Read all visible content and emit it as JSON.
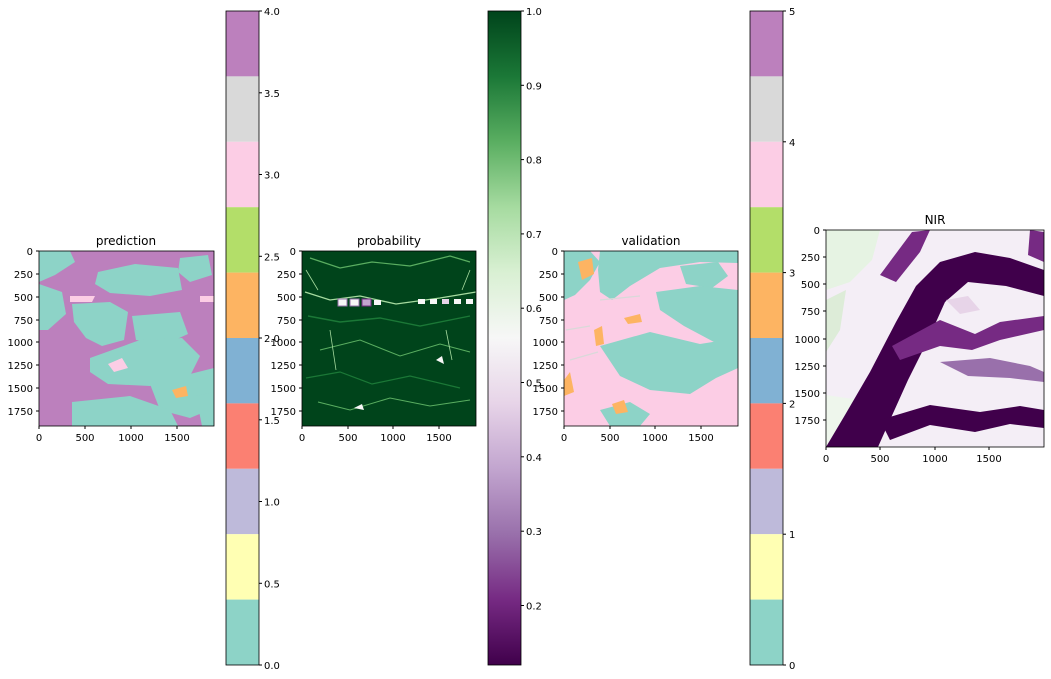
{
  "colors": {
    "set3": [
      "#8dd3c7",
      "#ffffb3",
      "#bebada",
      "#fb8072",
      "#80b1d3",
      "#fdb462",
      "#b3de69",
      "#fccde5",
      "#d9d9d9",
      "#bc80bd"
    ],
    "prgn": [
      "#40004b",
      "#762a83",
      "#9970ab",
      "#c2a5cf",
      "#e7d4e8",
      "#f7f7f7",
      "#d9f0d3",
      "#a6dba0",
      "#5aae61",
      "#1b7837",
      "#00441b"
    ],
    "axis": "#000000"
  },
  "chart_data": [
    {
      "type": "heatmap",
      "title": "prediction",
      "xticks": [
        "0",
        "500",
        "1000",
        "1500"
      ],
      "yticks": [
        "0",
        "250",
        "500",
        "750",
        "1000",
        "1250",
        "1500",
        "1750"
      ],
      "xlim": [
        0,
        1900
      ],
      "ylim": [
        1900,
        0
      ],
      "colormap": "Set3",
      "colorbar": {
        "range": [
          0,
          4
        ],
        "ticks": [
          "0.0",
          "0.5",
          "1.0",
          "1.5",
          "2.0",
          "2.5",
          "3.0",
          "3.5",
          "4.0"
        ],
        "segments": 10
      }
    },
    {
      "type": "heatmap",
      "title": "probability",
      "xticks": [
        "0",
        "500",
        "1000",
        "1500"
      ],
      "yticks": [
        "0",
        "250",
        "500",
        "750",
        "1000",
        "1250",
        "1500",
        "1750"
      ],
      "xlim": [
        0,
        1900
      ],
      "ylim": [
        1900,
        0
      ],
      "colormap": "PRGn",
      "colorbar": {
        "range": [
          0.12,
          1.0
        ],
        "ticks": [
          "0.2",
          "0.3",
          "0.4",
          "0.5",
          "0.6",
          "0.7",
          "0.8",
          "0.9",
          "1.0"
        ]
      }
    },
    {
      "type": "heatmap",
      "title": "validation",
      "xticks": [
        "0",
        "500",
        "1000",
        "1500"
      ],
      "yticks": [
        "0",
        "250",
        "500",
        "750",
        "1000",
        "1250",
        "1500",
        "1750"
      ],
      "xlim": [
        0,
        1900
      ],
      "ylim": [
        1900,
        0
      ],
      "colormap": "Set3",
      "colorbar": {
        "range": [
          0,
          5
        ],
        "ticks": [
          "0",
          "1",
          "2",
          "3",
          "4",
          "5"
        ],
        "segments": 10
      }
    },
    {
      "type": "heatmap",
      "title": "NIR",
      "xticks": [
        "0",
        "500",
        "1000",
        "1500"
      ],
      "yticks": [
        "0",
        "250",
        "500",
        "750",
        "1000",
        "1250",
        "1500",
        "1750"
      ],
      "xlim": [
        0,
        2000
      ],
      "ylim": [
        2000,
        0
      ],
      "colormap": "PRGn"
    }
  ]
}
